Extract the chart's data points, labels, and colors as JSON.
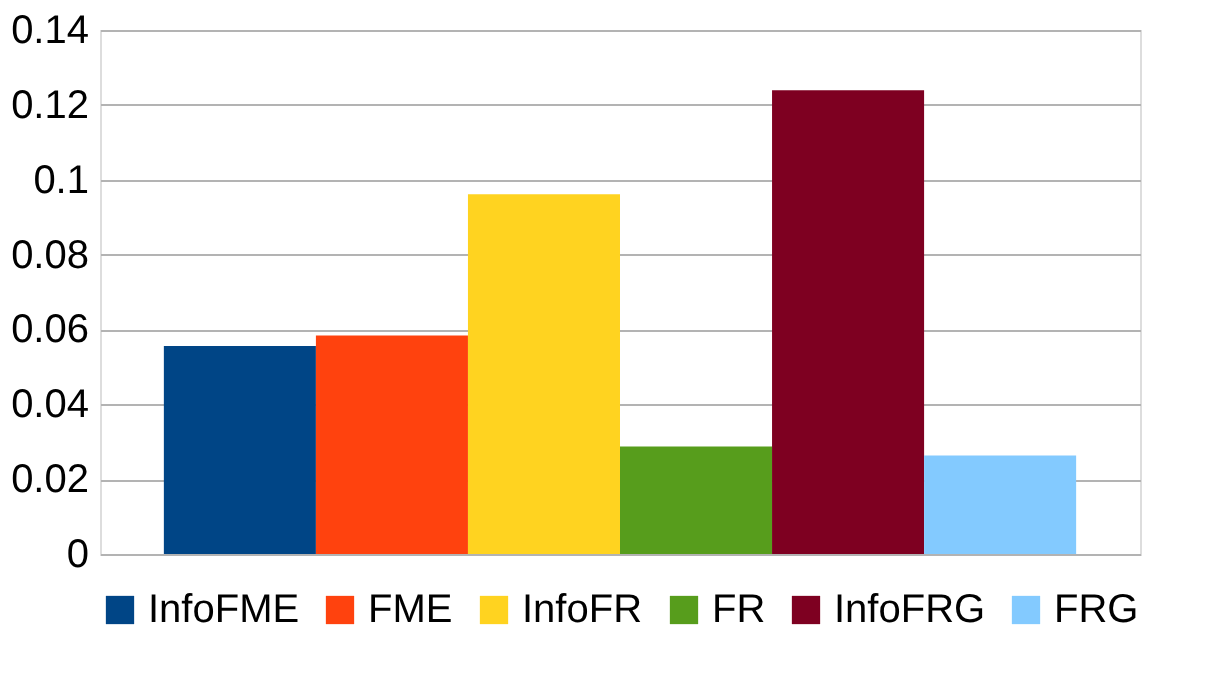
{
  "chart_data": {
    "type": "bar",
    "categories": [
      null
    ],
    "series": [
      {
        "name": "InfoFME",
        "color": "#004586",
        "values": [
          0.0556
        ]
      },
      {
        "name": "FME",
        "color": "#ff420e",
        "values": [
          0.0584
        ]
      },
      {
        "name": "InfoFR",
        "color": "#ffd320",
        "values": [
          0.0961
        ]
      },
      {
        "name": "FR",
        "color": "#579d1c",
        "values": [
          0.0287
        ]
      },
      {
        "name": "InfoFRG",
        "color": "#7e0021",
        "values": [
          0.1239
        ]
      },
      {
        "name": "FRG",
        "color": "#83caff",
        "values": [
          0.0263
        ]
      }
    ],
    "ylim": [
      0,
      0.14
    ],
    "yticks": [
      0,
      0.02,
      0.04,
      0.06,
      0.08,
      0.1,
      0.12,
      0.14
    ],
    "grid": "y",
    "legend": "bottom",
    "tick_labels": "y"
  }
}
